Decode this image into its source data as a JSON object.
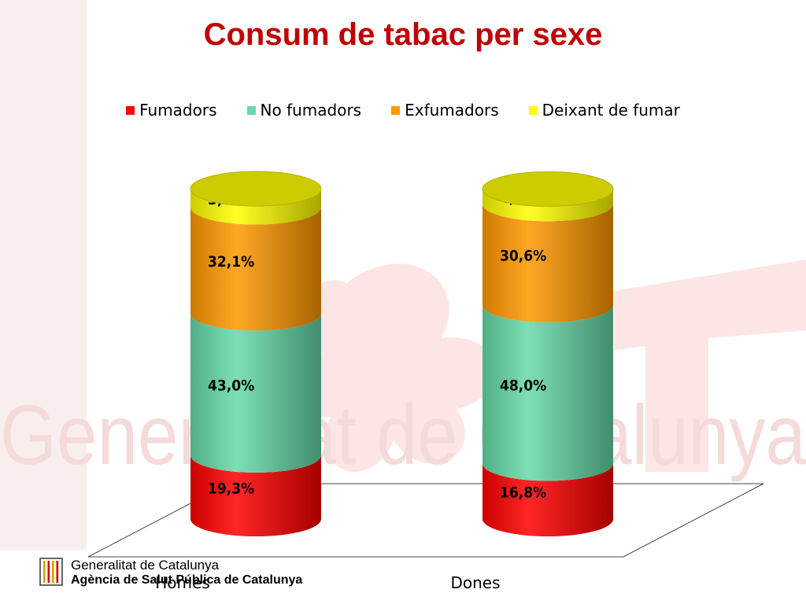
{
  "chart_data": {
    "type": "bar",
    "stacked": true,
    "style": "3d-cylinder",
    "title": "Consum de tabac per sexe",
    "categories": [
      "Homes",
      "Dones"
    ],
    "series": [
      {
        "name": "Fumadors",
        "color": "#ff0000",
        "values": [
          19.3,
          16.8
        ],
        "labels": [
          "19,3%",
          "16,8%"
        ]
      },
      {
        "name": "No fumadors",
        "color": "#66d9a8",
        "values": [
          43.0,
          48.0
        ],
        "labels": [
          "43,0%",
          "48,0%"
        ]
      },
      {
        "name": "Exfumadors",
        "color": "#ff9900",
        "values": [
          32.1,
          30.6
        ],
        "labels": [
          "32,1%",
          "30,6%"
        ]
      },
      {
        "name": "Deixant de fumar",
        "color": "#ffff00",
        "values": [
          5.6,
          4.5
        ],
        "labels": [
          "5,6%",
          "4,5%"
        ]
      }
    ],
    "ylim": [
      0,
      100
    ],
    "legend_position": "top",
    "grid": false
  },
  "footer": {
    "line1": "Generalitat de Catalunya",
    "line2": "Agència de Salut Pública de Catalunya"
  },
  "watermark": {
    "text": "Generalitat de Catalunya",
    "color": "#fde2e2"
  }
}
